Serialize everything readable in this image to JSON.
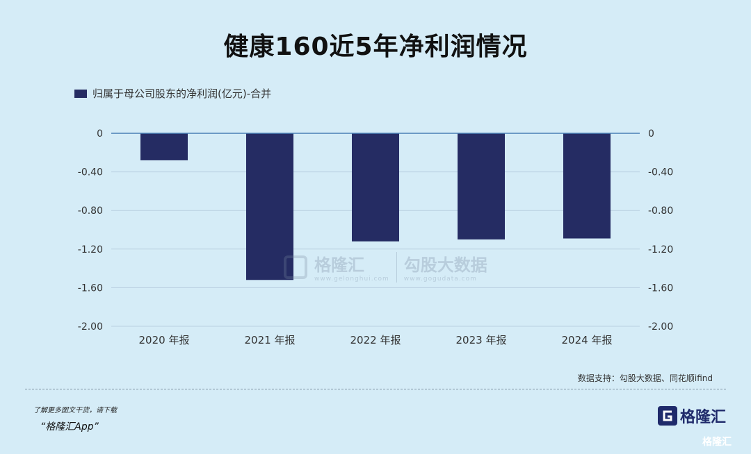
{
  "title": "健康160近5年净利润情况",
  "legend_label": "归属于母公司股东的净利润(亿元)-合并",
  "source": "数据支持：勾股大数据、同花顺ifind",
  "footer": {
    "line1": "了解更多图文干货，请下载",
    "line2": "“格隆汇App”"
  },
  "brand": {
    "name": "格隆汇",
    "logo_letter": "G",
    "corner_watermark": "格隆汇"
  },
  "watermark": {
    "left_text": "格隆汇",
    "left_sub": "www.gelonghui.com",
    "right_text": "勾股大数据",
    "right_sub": "www.gogudata.com"
  },
  "colors": {
    "bar": "#252c63",
    "background": "#d5ecf7",
    "grid": "#b9cfe0",
    "axis": "#4a7fb5"
  },
  "chart_data": {
    "type": "bar",
    "categories": [
      "2020 年报",
      "2021 年报",
      "2022 年报",
      "2023 年报",
      "2024 年报"
    ],
    "series": [
      {
        "name": "归属于母公司股东的净利润(亿元)-合并",
        "values": [
          -0.28,
          -1.52,
          -1.12,
          -1.1,
          -1.09
        ]
      }
    ],
    "ylim": [
      -2.0,
      0
    ],
    "yticks": [
      0,
      -0.4,
      -0.8,
      -1.2,
      -1.6,
      -2.0
    ],
    "ytick_labels": [
      "0",
      "-0.40",
      "-0.80",
      "-1.20",
      "-1.60",
      "-2.00"
    ],
    "dual_axis_labels": true,
    "grid": true,
    "legend": "top-left"
  }
}
